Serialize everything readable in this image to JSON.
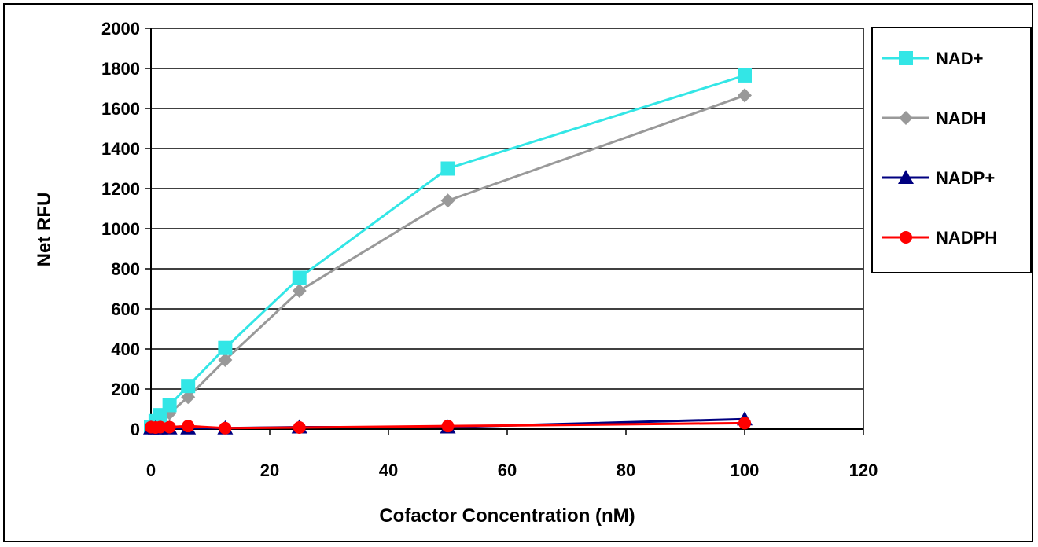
{
  "chart_data": {
    "type": "line",
    "title": "",
    "xlabel": "Cofactor Concentration (nM)",
    "ylabel": "Net RFU",
    "xlim": [
      0,
      120
    ],
    "ylim": [
      0,
      2000
    ],
    "x_ticks": [
      0,
      20,
      40,
      60,
      80,
      100,
      120
    ],
    "y_ticks": [
      0,
      200,
      400,
      600,
      800,
      1000,
      1200,
      1400,
      1600,
      1800,
      2000
    ],
    "grid": "horizontal",
    "legend_position": "right",
    "series": [
      {
        "name": "NAD+",
        "color": "#33E6E6",
        "marker": "square",
        "x": [
          0,
          0.78,
          1.56,
          3.13,
          6.25,
          12.5,
          25,
          50,
          100
        ],
        "y": [
          10,
          40,
          70,
          120,
          215,
          405,
          755,
          1300,
          1765
        ]
      },
      {
        "name": "NADH",
        "color": "#999999",
        "marker": "diamond",
        "x": [
          0,
          0.78,
          1.56,
          3.13,
          6.25,
          12.5,
          25,
          50,
          100
        ],
        "y": [
          5,
          20,
          40,
          80,
          160,
          345,
          690,
          1140,
          1665
        ]
      },
      {
        "name": "NADP+",
        "color": "#000080",
        "marker": "triangle",
        "x": [
          0,
          0.78,
          1.56,
          3.13,
          6.25,
          12.5,
          25,
          50,
          100
        ],
        "y": [
          5,
          5,
          5,
          5,
          5,
          5,
          10,
          10,
          50
        ]
      },
      {
        "name": "NADPH",
        "color": "#FF0000",
        "marker": "circle",
        "x": [
          0,
          0.78,
          1.56,
          3.13,
          6.25,
          12.5,
          25,
          50,
          100
        ],
        "y": [
          10,
          8,
          10,
          10,
          15,
          5,
          8,
          15,
          30
        ]
      }
    ]
  }
}
